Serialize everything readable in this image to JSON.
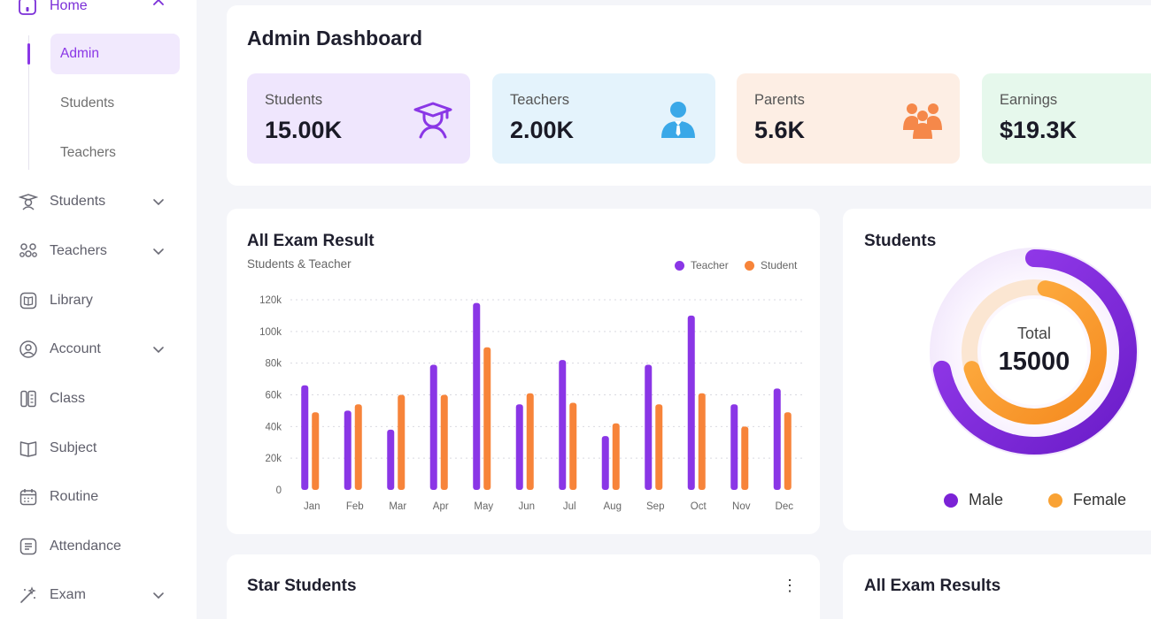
{
  "sidebar": {
    "home": {
      "label": "Home",
      "icon": "home-icon"
    },
    "sub_items": [
      {
        "label": "Admin",
        "active": true
      },
      {
        "label": "Students",
        "active": false
      },
      {
        "label": "Teachers",
        "active": false
      }
    ],
    "items": [
      {
        "label": "Students",
        "icon": "graduate-icon",
        "chevron": true
      },
      {
        "label": "Teachers",
        "icon": "group-icon",
        "chevron": true
      },
      {
        "label": "Library",
        "icon": "book-icon",
        "chevron": false
      },
      {
        "label": "Account",
        "icon": "user-circle-icon",
        "chevron": true
      },
      {
        "label": "Class",
        "icon": "class-icon",
        "chevron": false
      },
      {
        "label": "Subject",
        "icon": "open-book-icon",
        "chevron": false
      },
      {
        "label": "Routine",
        "icon": "calendar-icon",
        "chevron": false
      },
      {
        "label": "Attendance",
        "icon": "list-icon",
        "chevron": false
      },
      {
        "label": "Exam",
        "icon": "wand-icon",
        "chevron": true
      }
    ]
  },
  "dashboard": {
    "title": "Admin Dashboard",
    "stats": [
      {
        "label": "Students",
        "value": "15.00K",
        "bg": "#efe6fd",
        "icon": "graduate-icon",
        "color": "#8a36e6"
      },
      {
        "label": "Teachers",
        "value": "2.00K",
        "bg": "#e4f3fc",
        "icon": "teacher-icon",
        "color": "#3aa8e8"
      },
      {
        "label": "Parents",
        "value": "5.6K",
        "bg": "#fdeee4",
        "icon": "parents-icon",
        "color": "#f5884a"
      },
      {
        "label": "Earnings",
        "value": "$19.3K",
        "bg": "#e6f8ec",
        "icon": "earnings-icon",
        "color": "#3cbf6b"
      }
    ]
  },
  "exam_chart": {
    "title": "All Exam Result",
    "subtitle": "Students & Teacher",
    "legend": [
      {
        "name": "Teacher",
        "color": "#8a36e6"
      },
      {
        "name": "Student",
        "color": "#f7843a"
      }
    ]
  },
  "students_donut": {
    "title": "Students",
    "total_label": "Total",
    "total_value": "15000",
    "legend": [
      {
        "name": "Male",
        "color": "#7b22d6"
      },
      {
        "name": "Female",
        "color": "#f9a234"
      }
    ]
  },
  "bottom": {
    "star_title": "Star Students",
    "results_title": "All Exam Results"
  },
  "chart_data": [
    {
      "type": "bar",
      "title": "All Exam Result",
      "subtitle": "Students & Teacher",
      "categories": [
        "Jan",
        "Feb",
        "Mar",
        "Apr",
        "May",
        "Jun",
        "Jul",
        "Aug",
        "Sep",
        "Oct",
        "Nov",
        "Dec"
      ],
      "series": [
        {
          "name": "Teacher",
          "color": "#8a36e6",
          "values": [
            66000,
            50000,
            38000,
            79000,
            118000,
            54000,
            82000,
            34000,
            79000,
            110000,
            54000,
            64000
          ]
        },
        {
          "name": "Student",
          "color": "#f7843a",
          "values": [
            49000,
            54000,
            60000,
            60000,
            90000,
            61000,
            55000,
            42000,
            54000,
            61000,
            40000,
            49000
          ]
        }
      ],
      "yticks": [
        "0",
        "20k",
        "40k",
        "60k",
        "80k",
        "100k",
        "120k"
      ],
      "ylim": [
        0,
        120000
      ],
      "grid": true,
      "legend_position": "top-right"
    },
    {
      "type": "pie",
      "title": "Students",
      "total": 15000,
      "slices": [
        {
          "name": "Male",
          "value": 0.72,
          "color": "#7b22d6"
        },
        {
          "name": "Female",
          "value": 0.68,
          "color": "#f9a234"
        }
      ]
    }
  ]
}
